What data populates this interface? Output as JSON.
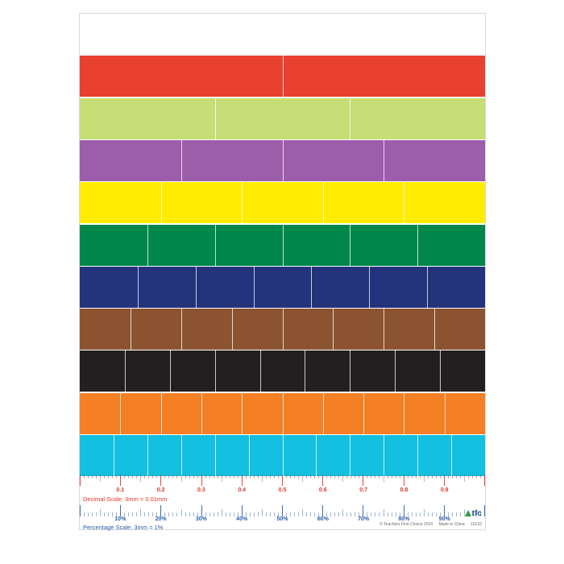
{
  "colors": {
    "red": "#e9412f",
    "lime": "#c5de75",
    "purple": "#9c5eaa",
    "yellow": "#ffec00",
    "green": "#00874b",
    "navy": "#23337c",
    "brown": "#8c5331",
    "black": "#231f20",
    "orange": "#f47f24",
    "cyan": "#13c0df",
    "decimal_scale": "#e3332a",
    "percentage_scale": "#2b5caa"
  },
  "strips": [
    {
      "name": "whole",
      "color": "#ffffff",
      "parts": 1
    },
    {
      "name": "halves",
      "color": "#e9412f",
      "parts": 2
    },
    {
      "name": "thirds",
      "color": "#c5de75",
      "parts": 3
    },
    {
      "name": "quarters",
      "color": "#9c5eaa",
      "parts": 4
    },
    {
      "name": "fifths",
      "color": "#ffec00",
      "parts": 5
    },
    {
      "name": "sixths",
      "color": "#00874b",
      "parts": 6
    },
    {
      "name": "sevenths",
      "color": "#23337c",
      "parts": 7
    },
    {
      "name": "eighths",
      "color": "#8c5331",
      "parts": 8
    },
    {
      "name": "ninths",
      "color": "#231f20",
      "parts": 9
    },
    {
      "name": "tenths",
      "color": "#f47f24",
      "parts": 10
    },
    {
      "name": "twelfths",
      "color": "#13c0df",
      "parts": 12
    }
  ],
  "decimal_scale": {
    "labels": [
      "0.1",
      "0.2",
      "0.3",
      "0.4",
      "0.5",
      "0.6",
      "0.7",
      "0.8",
      "0.9"
    ],
    "caption": "Decimal Scale: 3mm = 0.01mm"
  },
  "percentage_scale": {
    "labels": [
      "10%",
      "20%",
      "30%",
      "40%",
      "50%",
      "60%",
      "70%",
      "80%",
      "90%"
    ],
    "caption": "Percentage Scale: 3mm = 1%"
  },
  "footer": {
    "copyright": "© Teachers First Choice 2014",
    "made_in": "Made in China",
    "code": "16133"
  },
  "logo": {
    "text": "tfc",
    "icon": "triangle-logo-icon"
  }
}
